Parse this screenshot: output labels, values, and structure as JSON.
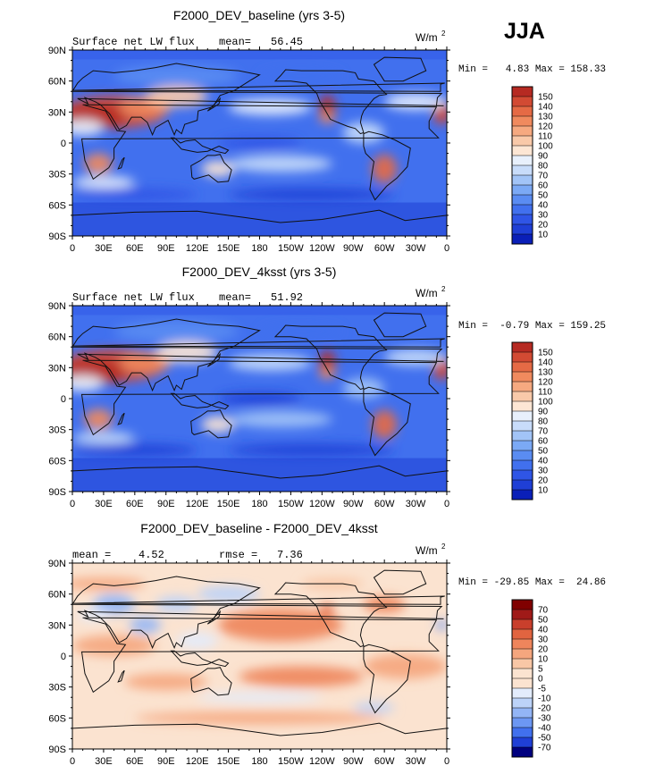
{
  "season_label": "JJA",
  "colors": {
    "seq": [
      "#00007f",
      "#0a1fb8",
      "#1f3fd6",
      "#2f55e6",
      "#4170ee",
      "#5a8cf2",
      "#7ba9f5",
      "#a2c4f7",
      "#c8dcfa",
      "#e8f0fc",
      "#fde6d4",
      "#f9c9a9",
      "#f6a980",
      "#f08a5e",
      "#e56a45",
      "#d24a33",
      "#b62a22",
      "#8e0c12"
    ],
    "div": [
      "#00007f",
      "#1f3fd6",
      "#4170ee",
      "#6c97f3",
      "#93b5f6",
      "#bcd3f9",
      "#e3ecfc",
      "#fbe3d0",
      "#f9c7a6",
      "#f5a67e",
      "#ef855c",
      "#e16440",
      "#c93f2c",
      "#a01a18",
      "#800000"
    ]
  },
  "panels": [
    {
      "id": "baseline",
      "title": "F2000_DEV_baseline (yrs 3-5)",
      "left_label": "Surface net LW flux",
      "stat1_label": "mean=",
      "stat1_value": "56.45",
      "stat2_label": "",
      "stat2_value": "",
      "units": "W/m",
      "units_sup": "2",
      "min_max": "Min =   4.83 Max = 158.33",
      "colorbar_labels": [
        "150",
        "140",
        "130",
        "120",
        "110",
        "100",
        "90",
        "80",
        "70",
        "60",
        "50",
        "40",
        "30",
        "20",
        "10"
      ],
      "field": "baseline"
    },
    {
      "id": "4ksst",
      "title": "F2000_DEV_4ksst (yrs 3-5)",
      "left_label": "Surface net LW flux",
      "stat1_label": "mean=",
      "stat1_value": "51.92",
      "stat2_label": "",
      "stat2_value": "",
      "units": "W/m",
      "units_sup": "2",
      "min_max": "Min =  -0.79 Max = 159.25",
      "colorbar_labels": [
        "150",
        "140",
        "130",
        "120",
        "110",
        "100",
        "90",
        "80",
        "70",
        "60",
        "50",
        "40",
        "30",
        "20",
        "10"
      ],
      "field": "4ksst"
    },
    {
      "id": "diff",
      "title": "F2000_DEV_baseline - F2000_DEV_4ksst",
      "left_label": "mean =",
      "stat1_label": "",
      "stat1_value": "4.52",
      "stat2_label": "rmse =",
      "stat2_value": "7.36",
      "units": "W/m",
      "units_sup": "2",
      "min_max": "Min = -29.85 Max =  24.86",
      "colorbar_labels": [
        "70",
        "50",
        "40",
        "30",
        "20",
        "10",
        "5",
        "0",
        "-5",
        "-10",
        "-20",
        "-30",
        "-40",
        "-50",
        "-70"
      ],
      "field": "diff"
    }
  ],
  "chart_data": {
    "type": "heatmap",
    "variable": "Surface net LW flux",
    "units": "W/m2",
    "season": "JJA",
    "x_ticks": [
      "0",
      "30E",
      "60E",
      "90E",
      "120E",
      "150E",
      "180",
      "150W",
      "120W",
      "90W",
      "60W",
      "30W",
      "0"
    ],
    "y_ticks": [
      "90N",
      "60N",
      "30N",
      "0",
      "30S",
      "60S",
      "90S"
    ],
    "xlim": [
      0,
      360
    ],
    "ylim": [
      -90,
      90
    ],
    "maps": [
      {
        "name": "F2000_DEV_baseline (yrs 3-5)",
        "mean": 56.45,
        "min": 4.83,
        "max": 158.33,
        "levels": [
          10,
          20,
          30,
          40,
          50,
          60,
          70,
          80,
          90,
          100,
          110,
          120,
          130,
          140,
          150
        ]
      },
      {
        "name": "F2000_DEV_4ksst (yrs 3-5)",
        "mean": 51.92,
        "min": -0.79,
        "max": 159.25,
        "levels": [
          10,
          20,
          30,
          40,
          50,
          60,
          70,
          80,
          90,
          100,
          110,
          120,
          130,
          140,
          150
        ]
      },
      {
        "name": "F2000_DEV_baseline - F2000_DEV_4ksst",
        "mean": 4.52,
        "rmse": 7.36,
        "min": -29.85,
        "max": 24.86,
        "levels": [
          -70,
          -50,
          -40,
          -30,
          -20,
          -10,
          -5,
          0,
          5,
          10,
          20,
          30,
          40,
          50,
          70
        ]
      }
    ]
  }
}
